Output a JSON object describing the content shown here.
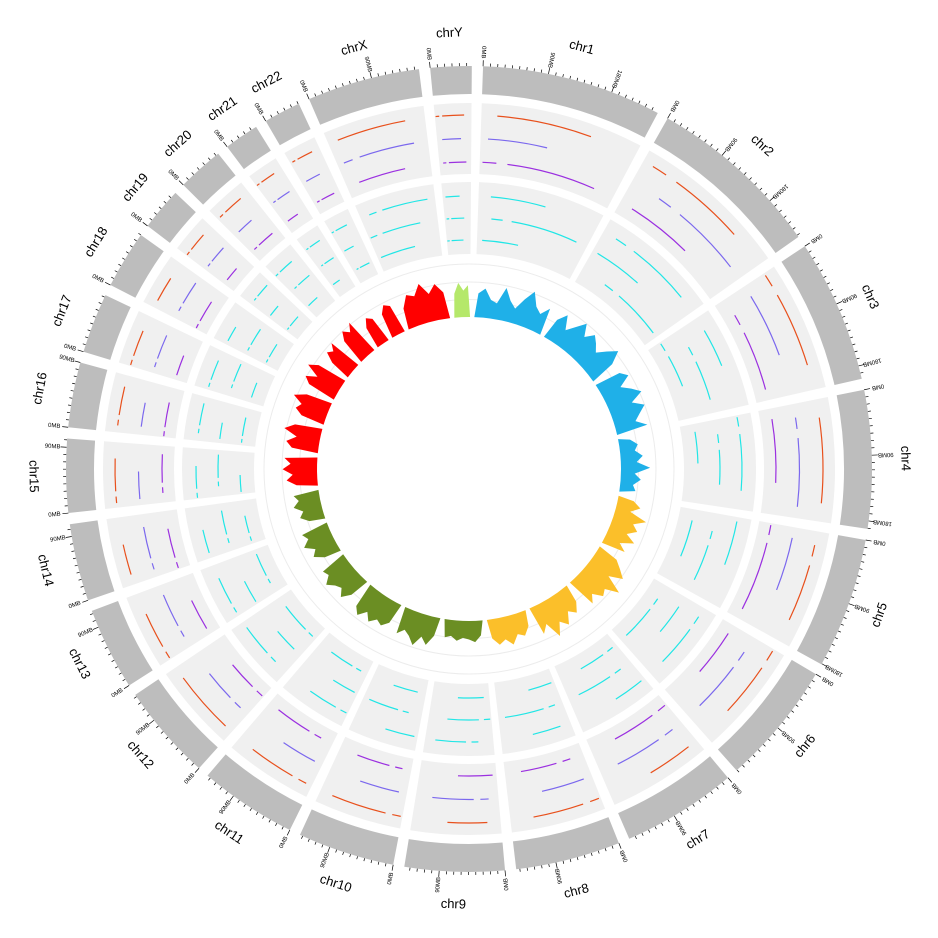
{
  "chart_data": {
    "type": "circos",
    "title": "",
    "tick_unit_labels": [
      "0MB",
      "90MB",
      "180MB"
    ],
    "colors": {
      "ideogram": "#bdbdbd",
      "track_bg": "#f0f0f0",
      "track1": "#e8501c",
      "track2": "#7b68ee",
      "track3": "#9b30e0",
      "track4": "#21e6e6",
      "area": {
        "chr1": "#1fb0e8",
        "chr2": "#1fb0e8",
        "chr3": "#1fb0e8",
        "chr4": "#1fb0e8",
        "chr5": "#fbbf2a",
        "chr6": "#fbbf2a",
        "chr7": "#fbbf2a",
        "chr8": "#fbbf2a",
        "chr9": "#6b8e23",
        "chr10": "#6b8e23",
        "chr11": "#6b8e23",
        "chr12": "#6b8e23",
        "chr13": "#6b8e23",
        "chr14": "#6b8e23",
        "chr15": "#ff0000",
        "chr16": "#ff0000",
        "chr17": "#ff0000",
        "chr18": "#ff0000",
        "chr19": "#ff0000",
        "chr20": "#ff0000",
        "chr21": "#ff0000",
        "chr22": "#ff0000",
        "chrX": "#ff0000",
        "chrY": "#b5e86a"
      }
    },
    "chromosomes": [
      {
        "name": "chr1",
        "length_mb": 249,
        "ticks": [
          "0MB",
          "90MB",
          "180MB"
        ]
      },
      {
        "name": "chr2",
        "length_mb": 243,
        "ticks": [
          "0MB",
          "90MB",
          "180MB"
        ]
      },
      {
        "name": "chr3",
        "length_mb": 198,
        "ticks": [
          "0MB",
          "90MB",
          "180MB"
        ]
      },
      {
        "name": "chr4",
        "length_mb": 191,
        "ticks": [
          "0MB",
          "90MB",
          "180MB"
        ]
      },
      {
        "name": "chr5",
        "length_mb": 181,
        "ticks": [
          "0MB",
          "90MB",
          "180MB"
        ]
      },
      {
        "name": "chr6",
        "length_mb": 171,
        "ticks": [
          "0MB",
          "90MB"
        ]
      },
      {
        "name": "chr7",
        "length_mb": 159,
        "ticks": [
          "0MB",
          "90MB"
        ]
      },
      {
        "name": "chr8",
        "length_mb": 145,
        "ticks": [
          "0MB",
          "90MB"
        ]
      },
      {
        "name": "chr9",
        "length_mb": 138,
        "ticks": [
          "0MB",
          "90MB"
        ]
      },
      {
        "name": "chr10",
        "length_mb": 134,
        "ticks": [
          "0MB",
          "90MB"
        ]
      },
      {
        "name": "chr11",
        "length_mb": 135,
        "ticks": [
          "0MB",
          "90MB"
        ]
      },
      {
        "name": "chr12",
        "length_mb": 133,
        "ticks": [
          "0MB",
          "90MB"
        ]
      },
      {
        "name": "chr13",
        "length_mb": 114,
        "ticks": [
          "0MB",
          "90MB"
        ]
      },
      {
        "name": "chr14",
        "length_mb": 107,
        "ticks": [
          "0MB",
          "90MB"
        ]
      },
      {
        "name": "chr15",
        "length_mb": 102,
        "ticks": [
          "0MB",
          "90MB"
        ]
      },
      {
        "name": "chr16",
        "length_mb": 90,
        "ticks": [
          "0MB",
          "90MB"
        ]
      },
      {
        "name": "chr17",
        "length_mb": 83,
        "ticks": [
          "0MB"
        ]
      },
      {
        "name": "chr18",
        "length_mb": 80,
        "ticks": [
          "0MB"
        ]
      },
      {
        "name": "chr19",
        "length_mb": 59,
        "ticks": [
          "0MB"
        ]
      },
      {
        "name": "chr20",
        "length_mb": 64,
        "ticks": [
          "0MB"
        ]
      },
      {
        "name": "chr21",
        "length_mb": 48,
        "ticks": [
          "0MB"
        ]
      },
      {
        "name": "chr22",
        "length_mb": 51,
        "ticks": [
          "0MB"
        ]
      },
      {
        "name": "chrX",
        "length_mb": 156,
        "ticks": [
          "0MB",
          "90MB"
        ]
      },
      {
        "name": "chrY",
        "length_mb": 57,
        "ticks": [
          "0MB"
        ]
      }
    ],
    "area_track": {
      "chr1": [
        0.45,
        0.55,
        0.35,
        0.3,
        0.62,
        0.4,
        0.28,
        0.5,
        0.7,
        0.45,
        0.35,
        0.52
      ],
      "chr2": [
        0.4,
        0.58,
        0.32,
        0.48,
        0.66,
        0.44,
        0.6,
        0.5,
        0.38,
        0.55,
        0.72,
        0.48
      ],
      "chr3": [
        0.5,
        0.62,
        0.38,
        0.55,
        0.7,
        0.45,
        0.66,
        0.52,
        0.4,
        0.6
      ],
      "chr4": [
        0.22,
        0.35,
        0.28,
        0.42,
        0.3,
        0.55,
        0.26,
        0.38,
        0.24,
        0.3
      ],
      "chr5": [
        0.3,
        0.45,
        0.28,
        0.62,
        0.4,
        0.52,
        0.35,
        0.55,
        0.3,
        0.46
      ],
      "chr6": [
        0.4,
        0.55,
        0.7,
        0.45,
        0.8,
        0.55,
        0.62,
        0.44,
        0.58
      ],
      "chr7": [
        0.35,
        0.52,
        0.4,
        0.62,
        0.48,
        0.72,
        0.4,
        0.55
      ],
      "chr8": [
        0.3,
        0.45,
        0.38,
        0.55,
        0.42,
        0.5,
        0.36
      ],
      "chr9": [
        0.28,
        0.4,
        0.35,
        0.32,
        0.38,
        0.3,
        0.34
      ],
      "chr10": [
        0.35,
        0.55,
        0.42,
        0.62,
        0.48,
        0.4,
        0.52
      ],
      "chr11": [
        0.4,
        0.52,
        0.46,
        0.58,
        0.44,
        0.6,
        0.48
      ],
      "chr12": [
        0.38,
        0.55,
        0.42,
        0.48,
        0.6,
        0.45,
        0.5
      ],
      "chr13": [
        0.32,
        0.5,
        0.4,
        0.58,
        0.44,
        0.52
      ],
      "chr14": [
        0.3,
        0.45,
        0.36,
        0.52,
        0.4,
        0.48
      ],
      "chr15": [
        0.4,
        0.58,
        0.46,
        0.65,
        0.5,
        0.62
      ],
      "chr16": [
        0.5,
        0.62,
        0.44,
        0.7,
        0.52
      ],
      "chr17": [
        0.45,
        0.6,
        0.52,
        0.72,
        0.5
      ],
      "chr18": [
        0.55,
        0.68,
        0.48,
        0.75,
        0.58
      ],
      "chr19": [
        0.4,
        0.6,
        0.52,
        0.65
      ],
      "chr20": [
        0.5,
        0.66,
        0.55,
        0.7
      ],
      "chr21": [
        0.42,
        0.58,
        0.5
      ],
      "chr22": [
        0.48,
        0.62,
        0.55
      ],
      "chrX": [
        0.4,
        0.62,
        0.55,
        0.75,
        0.52,
        0.68,
        0.5
      ],
      "chrY": [
        0.45,
        0.65,
        0.5,
        0.6
      ]
    },
    "segment_tracks": {
      "note_tracks": [
        "track1",
        "track2",
        "track3",
        "track4a",
        "track4b",
        "track4c"
      ],
      "segments": {
        "chr1": [
          [
            0.1,
            0.7
          ],
          [
            0.05,
            0.45
          ],
          [
            0.2,
            0.85
          ],
          [
            0.1,
            0.55
          ],
          [
            0.3,
            0.9
          ],
          [
            0.05,
            0.4
          ]
        ],
        "chr2": [
          [
            0.25,
            0.75
          ],
          [
            0.4,
            0.9
          ],
          [
            0.1,
            0.6
          ],
          [
            0.3,
            0.85
          ],
          [
            0.05,
            0.5
          ],
          [
            0.45,
            0.95
          ]
        ],
        "chr3": [
          [
            0.2,
            0.8
          ],
          [
            0.1,
            0.65
          ],
          [
            0.35,
            0.9
          ],
          [
            0.15,
            0.55
          ],
          [
            0.4,
            0.85
          ],
          [
            0.2,
            0.6
          ]
        ],
        "chr4": [
          [
            0.15,
            0.85
          ],
          [
            0.3,
            0.9
          ],
          [
            0.1,
            0.7
          ],
          [
            0.2,
            0.8
          ],
          [
            0.35,
            0.75
          ],
          [
            0.1,
            0.5
          ]
        ],
        "chr5": [
          [
            0.3,
            0.8
          ],
          [
            0.1,
            0.6
          ],
          [
            0.2,
            0.9
          ],
          [
            0.05,
            0.55
          ],
          [
            0.4,
            0.85
          ],
          [
            0.15,
            0.65
          ]
        ],
        "chr6": [
          [
            0.2,
            0.7
          ],
          [
            0.35,
            0.85
          ],
          [
            0.1,
            0.6
          ],
          [
            0.3,
            0.8
          ],
          [
            0.15,
            0.55
          ],
          [
            0.4,
            0.9
          ]
        ],
        "chr7": [
          [
            0.1,
            0.55
          ],
          [
            0.3,
            0.8
          ],
          [
            0.2,
            0.7
          ],
          [
            0.05,
            0.45
          ],
          [
            0.35,
            0.85
          ],
          [
            0.25,
            0.65
          ]
        ],
        "chr8": [
          [
            0.2,
            0.75
          ],
          [
            0.1,
            0.6
          ],
          [
            0.35,
            0.8
          ],
          [
            0.15,
            0.55
          ],
          [
            0.3,
            0.9
          ],
          [
            0.05,
            0.45
          ]
        ],
        "chr9": [
          [
            0.15,
            0.6
          ],
          [
            0.3,
            0.8
          ],
          [
            0.05,
            0.5
          ],
          [
            0.4,
            0.85
          ],
          [
            0.2,
            0.7
          ],
          [
            0.1,
            0.55
          ]
        ],
        "chr10": [
          [
            0.2,
            0.85
          ],
          [
            0.1,
            0.6
          ],
          [
            0.3,
            0.75
          ],
          [
            0.05,
            0.5
          ],
          [
            0.4,
            0.9
          ],
          [
            0.15,
            0.6
          ]
        ],
        "chr11": [
          [
            0.25,
            0.8
          ],
          [
            0.1,
            0.55
          ],
          [
            0.35,
            0.85
          ],
          [
            0.2,
            0.65
          ],
          [
            0.05,
            0.45
          ],
          [
            0.3,
            0.75
          ]
        ],
        "chr12": [
          [
            0.1,
            0.85
          ],
          [
            0.3,
            0.7
          ],
          [
            0.2,
            0.6
          ],
          [
            0.4,
            0.9
          ],
          [
            0.15,
            0.55
          ],
          [
            0.25,
            0.8
          ]
        ],
        "chr13": [
          [
            0.2,
            0.7
          ],
          [
            0.35,
            0.85
          ],
          [
            0.1,
            0.6
          ],
          [
            0.25,
            0.75
          ],
          [
            0.05,
            0.5
          ],
          [
            0.4,
            0.9
          ]
        ],
        "chr14": [
          [
            0.15,
            0.6
          ],
          [
            0.3,
            0.8
          ],
          [
            0.2,
            0.7
          ],
          [
            0.1,
            0.55
          ],
          [
            0.35,
            0.85
          ],
          [
            0.25,
            0.65
          ]
        ],
        "chr15": [
          [
            0.25,
            0.75
          ],
          [
            0.1,
            0.55
          ],
          [
            0.35,
            0.85
          ],
          [
            0.2,
            0.65
          ],
          [
            0.4,
            0.9
          ],
          [
            0.05,
            0.45
          ]
        ],
        "chr16": [
          [
            0.3,
            0.8
          ],
          [
            0.15,
            0.6
          ],
          [
            0.2,
            0.7
          ],
          [
            0.35,
            0.85
          ],
          [
            0.1,
            0.5
          ],
          [
            0.25,
            0.75
          ]
        ],
        "chr17": [
          [
            0.2,
            0.7
          ],
          [
            0.3,
            0.8
          ],
          [
            0.1,
            0.55
          ],
          [
            0.25,
            0.75
          ],
          [
            0.4,
            0.9
          ],
          [
            0.15,
            0.6
          ]
        ],
        "chr18": [
          [
            0.15,
            0.65
          ],
          [
            0.35,
            0.85
          ],
          [
            0.2,
            0.7
          ],
          [
            0.1,
            0.5
          ],
          [
            0.3,
            0.8
          ],
          [
            0.25,
            0.7
          ]
        ],
        "chr19": [
          [
            0.2,
            0.7
          ],
          [
            0.3,
            0.8
          ],
          [
            0.15,
            0.6
          ],
          [
            0.35,
            0.85
          ],
          [
            0.1,
            0.55
          ],
          [
            0.25,
            0.75
          ]
        ],
        "chr20": [
          [
            0.25,
            0.75
          ],
          [
            0.15,
            0.6
          ],
          [
            0.3,
            0.8
          ],
          [
            0.2,
            0.7
          ],
          [
            0.35,
            0.85
          ],
          [
            0.1,
            0.55
          ]
        ],
        "chr21": [
          [
            0.2,
            0.7
          ],
          [
            0.3,
            0.8
          ],
          [
            0.15,
            0.6
          ],
          [
            0.25,
            0.75
          ],
          [
            0.35,
            0.85
          ],
          [
            0.1,
            0.5
          ]
        ],
        "chr22": [
          [
            0.25,
            0.75
          ],
          [
            0.15,
            0.65
          ],
          [
            0.3,
            0.8
          ],
          [
            0.2,
            0.7
          ],
          [
            0.1,
            0.55
          ],
          [
            0.35,
            0.85
          ]
        ],
        "chrX": [
          [
            0.1,
            0.8
          ],
          [
            0.25,
            0.85
          ],
          [
            0.15,
            0.7
          ],
          [
            0.3,
            0.9
          ],
          [
            0.2,
            0.75
          ],
          [
            0.05,
            0.6
          ]
        ],
        "chrY": [
          [
            0.2,
            0.8
          ],
          [
            0.15,
            0.7
          ],
          [
            0.3,
            0.85
          ],
          [
            0.1,
            0.6
          ],
          [
            0.25,
            0.75
          ],
          [
            0.2,
            0.7
          ]
        ]
      }
    }
  }
}
